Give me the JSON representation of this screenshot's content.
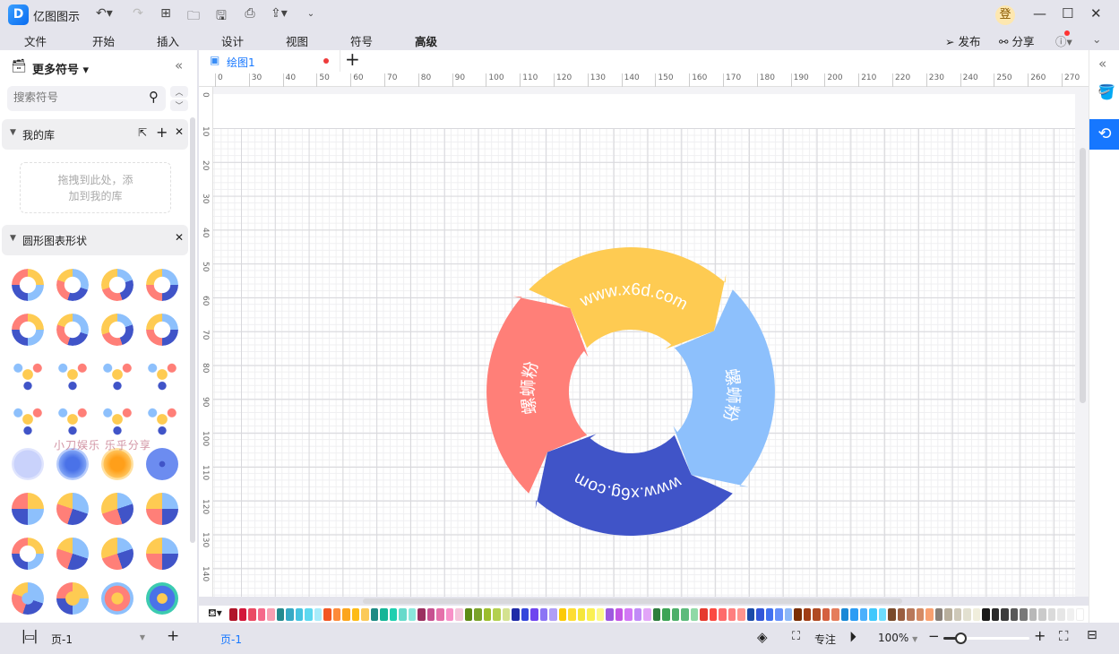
{
  "app": {
    "name": "亿图图示",
    "logo_letter": "D"
  },
  "toolbar": {
    "icons": [
      "undo-icon",
      "redo-icon",
      "new-icon",
      "open-folder-icon",
      "save-icon",
      "print-icon",
      "export-icon",
      "more-icon"
    ]
  },
  "menu": [
    "文件",
    "开始",
    "插入",
    "设计",
    "视图",
    "符号",
    "高级"
  ],
  "header_right": {
    "login_badge": "登",
    "publish": "发布",
    "share": "分享"
  },
  "left_panel": {
    "title": "更多符号",
    "search_placeholder": "搜索符号",
    "my_library": {
      "title": "我的库",
      "drop_hint_1": "拖拽到此处，添",
      "drop_hint_2": "加到我的库"
    },
    "shapes_section": {
      "title": "圆形图表形状"
    },
    "watermark": "小刀娱乐 乐乎分享"
  },
  "tabs": [
    {
      "label": "绘图1",
      "unsaved": true
    }
  ],
  "ruler_h": [
    "0",
    "30",
    "40",
    "50",
    "60",
    "70",
    "80",
    "90",
    "100",
    "110",
    "120",
    "130",
    "140",
    "150",
    "160",
    "170",
    "180",
    "190",
    "200",
    "210",
    "220",
    "230",
    "240",
    "250",
    "260",
    "270"
  ],
  "ruler_v": [
    "0",
    "10",
    "20",
    "30",
    "40",
    "50",
    "60",
    "70",
    "80",
    "90",
    "100",
    "110",
    "120",
    "130",
    "140"
  ],
  "diagram": {
    "segments": [
      {
        "label": "www.x6d.com",
        "color": "#FECB52"
      },
      {
        "label": "螺蛳粉",
        "color": "#8DC0FC"
      },
      {
        "label": "www.x6g.com",
        "color": "#4054C8"
      },
      {
        "label": "螺蛳粉",
        "color": "#FF7F78"
      }
    ]
  },
  "palette": [
    "#b0152a",
    "#d3163a",
    "#ea4a64",
    "#f5698a",
    "#f89fb2",
    "#248a8e",
    "#36a9c4",
    "#45c3e0",
    "#5dd8f0",
    "#a8ecfb",
    "#f25724",
    "#fd8a3a",
    "#fca51c",
    "#fdbb16",
    "#fbca5a",
    "#1c8a84",
    "#14b597",
    "#1fcfb0",
    "#67dacb",
    "#8ae8dc",
    "#9b2f60",
    "#c75090",
    "#e570aa",
    "#f891c8",
    "#f4c4da",
    "#5f8a15",
    "#7aa22a",
    "#9cbd2c",
    "#b3d04f",
    "#d4e290",
    "#1f2aa8",
    "#3546db",
    "#6f45ef",
    "#8b74f5",
    "#b09ef6",
    "#fcca07",
    "#fedd35",
    "#f5e63a",
    "#faf052",
    "#fcf987",
    "#9e59df",
    "#c356e4",
    "#d278f5",
    "#c18af7",
    "#e2a5f8",
    "#2e7d3e",
    "#3ca455",
    "#4daf6a",
    "#5cbb7c",
    "#8fd9a6",
    "#e63a2e",
    "#fb4a42",
    "#fe6b6b",
    "#fe7f7f",
    "#fe948e",
    "#1a4aa8",
    "#3256d8",
    "#4070f0",
    "#6590fb",
    "#8cb8f8",
    "#7a2e05",
    "#a03d14",
    "#b04a22",
    "#d4603f",
    "#e57d5c",
    "#1a88d6",
    "#2c9cf4",
    "#4ab0fc",
    "#40c8fc",
    "#6edcfc",
    "#7a4a2a",
    "#9a5e40",
    "#b8785a",
    "#d48a64",
    "#f8a070",
    "#8a8078",
    "#b8ae9c",
    "#cec8b8",
    "#e2e0d0",
    "#f0eedc",
    "#1a1a1a",
    "#2a2a2a",
    "#3c3c3c",
    "#585858",
    "#787878",
    "#b8b8b8",
    "#cacaca",
    "#dadada",
    "#e6e6e6",
    "#f0f0f0",
    "#ffffff"
  ],
  "status": {
    "page_select": "页-1",
    "page_tab": "页-1",
    "focus": "专注",
    "zoom": "100%",
    "zoom_slider_fraction": 0.2
  },
  "colors": {
    "accent": "#1677ff"
  }
}
